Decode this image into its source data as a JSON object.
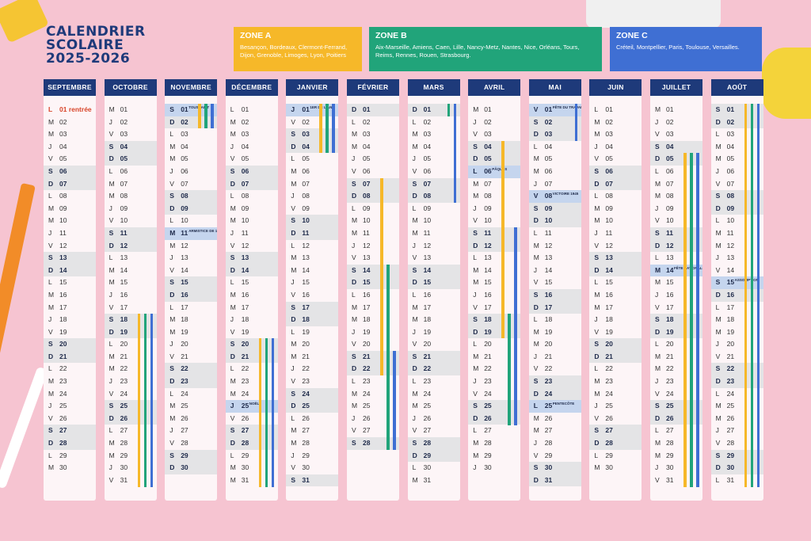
{
  "title_lines": [
    "CALENDRIER",
    "SCOLAIRE",
    "2025-2026"
  ],
  "colors": {
    "zone_a": "#f6b829",
    "zone_b": "#21a47a",
    "zone_c": "#3f6fd3",
    "header": "#1e3a7a",
    "background": "#f6c4d1"
  },
  "zones": [
    {
      "id": "A",
      "title": "ZONE A",
      "desc": "Besançon, Bordeaux, Clermont-Ferrand, Dijon, Grenoble, Limoges, Lyon, Poitiers"
    },
    {
      "id": "B",
      "title": "ZONE B",
      "desc": "Aix-Marseille, Amiens, Caen, Lille, Nancy-Metz, Nantes, Nice, Orléans, Tours, Reims, Rennes, Rouen, Strasbourg."
    },
    {
      "id": "C",
      "title": "ZONE C",
      "desc": "Créteil, Montpellier, Paris, Toulouse, Versailles."
    }
  ],
  "months": [
    {
      "name": "SEPTEMBRE",
      "days": 30,
      "start": 1,
      "events": {
        "1": "rentrée"
      },
      "bars": []
    },
    {
      "name": "OCTOBRE",
      "days": 31,
      "start": 3,
      "events": {},
      "bars": [
        [
          "A",
          18,
          31
        ],
        [
          "B",
          18,
          31
        ],
        [
          "C",
          18,
          31
        ]
      ]
    },
    {
      "name": "NOVEMBRE",
      "days": 30,
      "start": 6,
      "events": {
        "1": "TOUSSAINT",
        "11": "ARMISTICE DE 1918"
      },
      "bars": [
        [
          "A",
          1,
          2
        ],
        [
          "B",
          1,
          2
        ],
        [
          "C",
          1,
          2
        ]
      ]
    },
    {
      "name": "DÉCEMBRE",
      "days": 31,
      "start": 1,
      "events": {
        "25": "NOËL"
      },
      "bars": [
        [
          "A",
          20,
          31
        ],
        [
          "B",
          20,
          31
        ],
        [
          "C",
          20,
          31
        ]
      ]
    },
    {
      "name": "JANVIER",
      "days": 31,
      "start": 4,
      "events": {
        "1": "1ER DE L'AN"
      },
      "bars": [
        [
          "A",
          1,
          4
        ],
        [
          "B",
          1,
          4
        ],
        [
          "C",
          1,
          4
        ]
      ]
    },
    {
      "name": "FÉVRIER",
      "days": 28,
      "start": 0,
      "events": {},
      "bars": [
        [
          "A",
          7,
          22
        ],
        [
          "B",
          14,
          28
        ],
        [
          "C",
          21,
          28
        ]
      ]
    },
    {
      "name": "MARS",
      "days": 31,
      "start": 0,
      "events": {},
      "bars": [
        [
          "B",
          1,
          1
        ],
        [
          "C",
          1,
          8
        ]
      ]
    },
    {
      "name": "AVRIL",
      "days": 30,
      "start": 3,
      "events": {
        "6": "PÂQUES"
      },
      "bars": [
        [
          "A",
          4,
          19
        ],
        [
          "B",
          18,
          26
        ],
        [
          "C",
          11,
          26
        ]
      ]
    },
    {
      "name": "MAI",
      "days": 31,
      "start": 5,
      "events": {
        "1": "FÊTE DU TRAVAIL",
        "8": "VICTOIRE 1945",
        "25": "PENTECÔTE"
      },
      "bars": [
        [
          "C",
          1,
          3
        ]
      ]
    },
    {
      "name": "JUIN",
      "days": 30,
      "start": 1,
      "events": {},
      "bars": []
    },
    {
      "name": "JUILLET",
      "days": 31,
      "start": 3,
      "events": {
        "14": "FÊTE NATIONALE"
      },
      "bars": [
        [
          "A",
          5,
          31
        ],
        [
          "B",
          5,
          31
        ],
        [
          "C",
          5,
          31
        ]
      ]
    },
    {
      "name": "AOÛT",
      "days": 31,
      "start": 6,
      "events": {
        "15": "ASSOMPTION"
      },
      "bars": [
        [
          "A",
          1,
          31
        ],
        [
          "B",
          1,
          31
        ],
        [
          "C",
          1,
          31
        ]
      ]
    }
  ],
  "weekday_letters": [
    "D",
    "L",
    "M",
    "M",
    "J",
    "V",
    "S"
  ],
  "rentree_label": "rentrée"
}
